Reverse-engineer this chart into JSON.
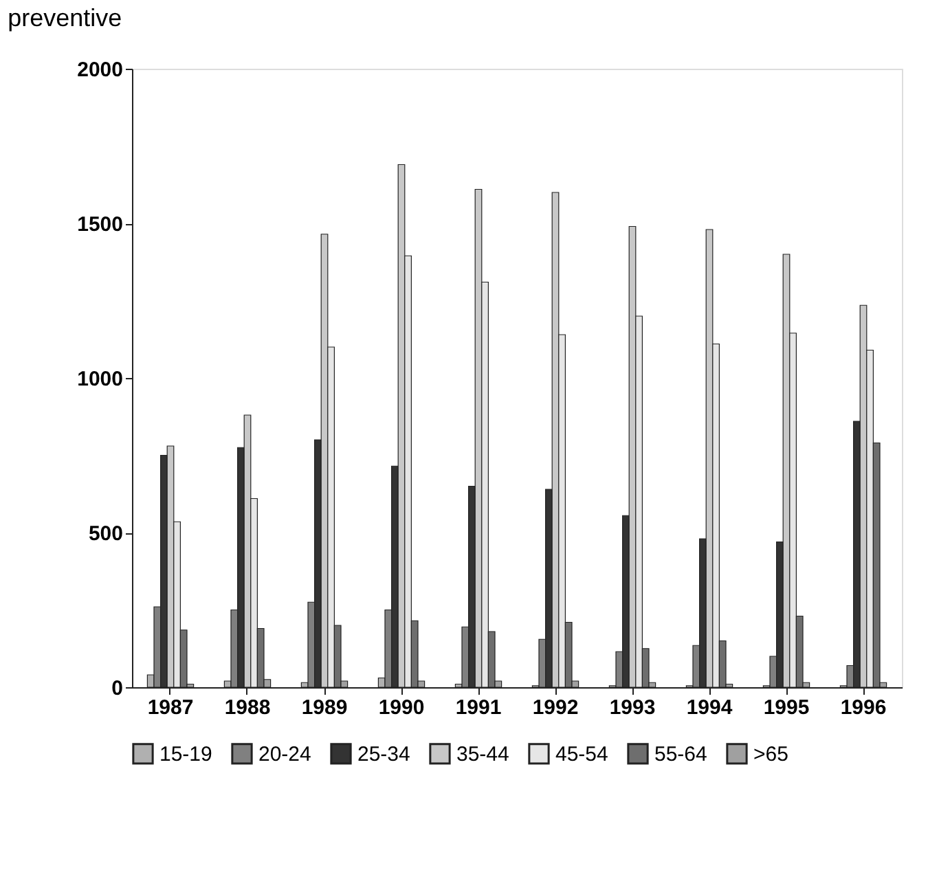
{
  "chart_data": {
    "type": "bar",
    "title": "preventive",
    "categories": [
      "1987",
      "1988",
      "1989",
      "1990",
      "1991",
      "1992",
      "1993",
      "1994",
      "1995",
      "1996"
    ],
    "series": [
      {
        "name": "15-19",
        "color": "#b0b0b0",
        "values": [
          40,
          20,
          15,
          30,
          10,
          5,
          5,
          5,
          5,
          5
        ]
      },
      {
        "name": "20-24",
        "color": "#808080",
        "values": [
          260,
          250,
          275,
          250,
          195,
          155,
          115,
          135,
          100,
          70
        ]
      },
      {
        "name": "25-34",
        "color": "#333333",
        "values": [
          750,
          775,
          800,
          715,
          650,
          640,
          555,
          480,
          470,
          860
        ]
      },
      {
        "name": "35-44",
        "color": "#c8c8c8",
        "values": [
          780,
          880,
          1465,
          1690,
          1610,
          1600,
          1490,
          1480,
          1400,
          1235
        ]
      },
      {
        "name": "45-54",
        "color": "#e6e6e6",
        "values": [
          535,
          610,
          1100,
          1395,
          1310,
          1140,
          1200,
          1110,
          1145,
          1090
        ]
      },
      {
        "name": "55-64",
        "color": "#6e6e6e",
        "values": [
          185,
          190,
          200,
          215,
          180,
          210,
          125,
          150,
          230,
          790
        ]
      },
      {
        "name": ">65",
        "color": "#a0a0a0",
        "values": [
          10,
          25,
          20,
          20,
          20,
          20,
          15,
          10,
          15,
          15
        ]
      }
    ],
    "ylim": [
      0,
      2000
    ],
    "yticks": [
      0,
      500,
      1000,
      1500,
      2000
    ],
    "grid": false,
    "legend": "bottom"
  }
}
